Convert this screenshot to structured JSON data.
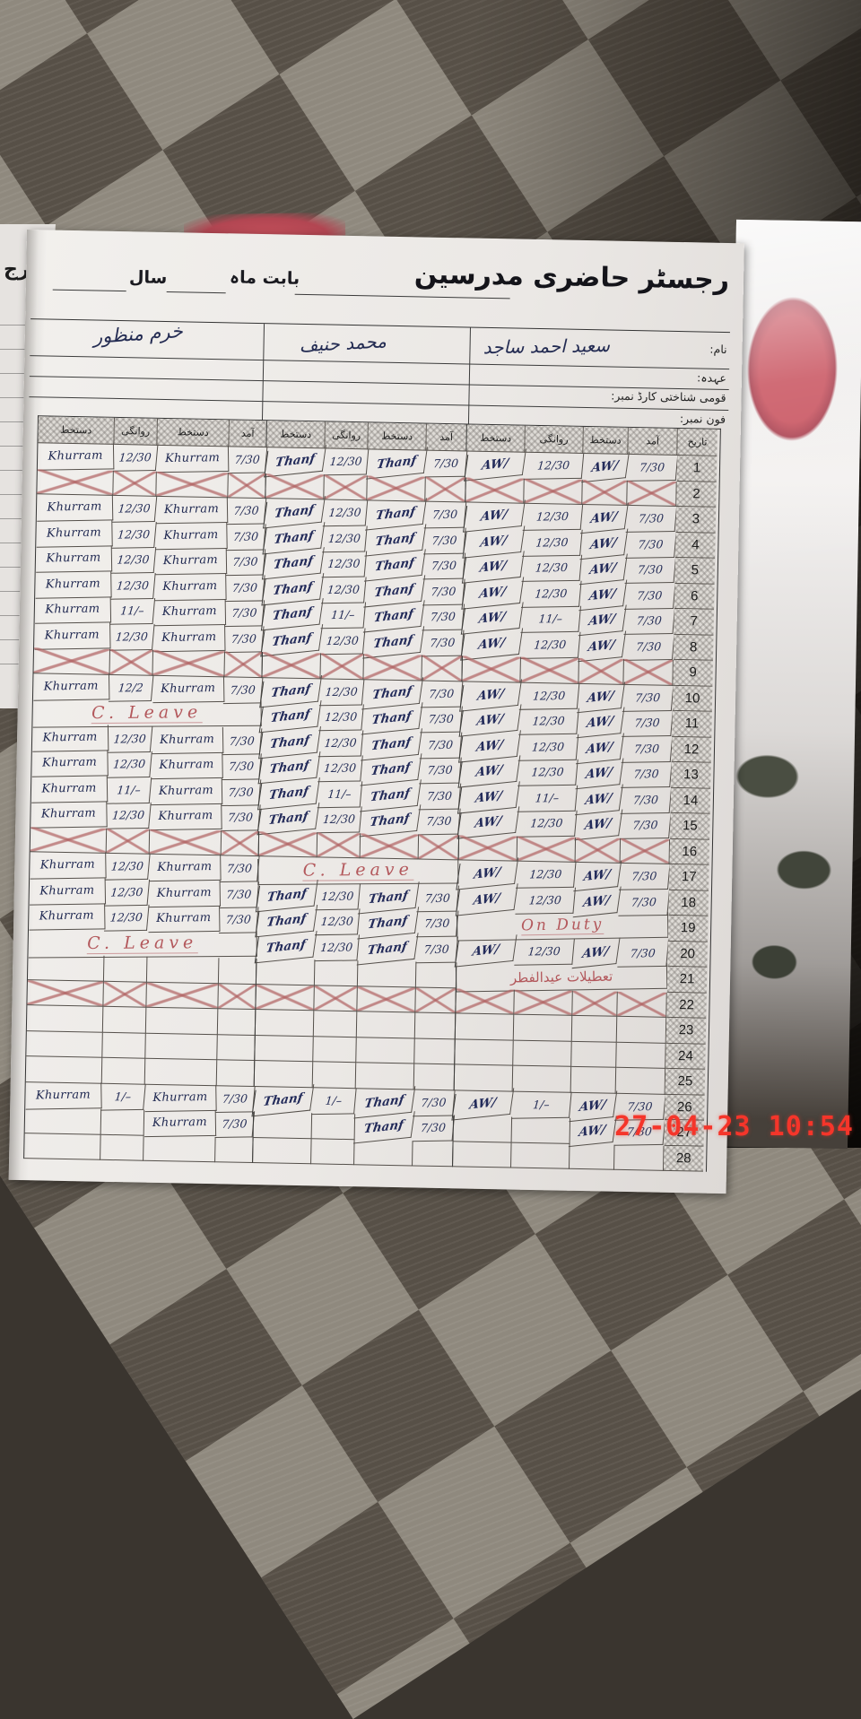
{
  "meta": {
    "timestamp": "27-04-23 10:54"
  },
  "previous_page": {
    "fragment": "رج"
  },
  "page_header": {
    "title": "رجسٹر حاضری مدرسین",
    "month_label": "بابت ماہ",
    "year_label": "سال"
  },
  "info": {
    "labels": {
      "name": "نام:",
      "designation": "عہدہ:",
      "id_card": "قومی شناختی کارڈ نمبر:",
      "phone": "فون نمبر:"
    },
    "name_value": "سعید احمد ساجد",
    "teacher1_signature": "خرم منظور",
    "teacher2_signature": "محمد حنیف"
  },
  "colors": {
    "ink_blue": "#232b5a",
    "red_note": "#b3585c",
    "timestamp_red": "#f5352a"
  },
  "table": {
    "column_headers": {
      "date": "تاریخ",
      "arrival": "آمد",
      "signature": "دستخط",
      "departure": "روانگی"
    },
    "rows": [
      {
        "date": "1",
        "cells": [
          "Khurram",
          "12/30",
          "Khurram",
          "7/30",
          "Thanf",
          "12/30",
          "Thanf",
          "7/30",
          "AW/",
          "12/30",
          "AW/",
          "7/30"
        ]
      },
      {
        "date": "2",
        "crossed": true
      },
      {
        "date": "3",
        "cells": [
          "Khurram",
          "12/30",
          "Khurram",
          "7/30",
          "Thanf",
          "12/30",
          "Thanf",
          "7/30",
          "AW/",
          "12/30",
          "AW/",
          "7/30"
        ]
      },
      {
        "date": "4",
        "cells": [
          "Khurram",
          "12/30",
          "Khurram",
          "7/30",
          "Thanf",
          "12/30",
          "Thanf",
          "7/30",
          "AW/",
          "12/30",
          "AW/",
          "7/30"
        ]
      },
      {
        "date": "5",
        "cells": [
          "Khurram",
          "12/30",
          "Khurram",
          "7/30",
          "Thanf",
          "12/30",
          "Thanf",
          "7/30",
          "AW/",
          "12/30",
          "AW/",
          "7/30"
        ]
      },
      {
        "date": "6",
        "cells": [
          "Khurram",
          "12/30",
          "Khurram",
          "7/30",
          "Thanf",
          "12/30",
          "Thanf",
          "7/30",
          "AW/",
          "12/30",
          "AW/",
          "7/30"
        ]
      },
      {
        "date": "7",
        "cells": [
          "Khurram",
          "11/–",
          "Khurram",
          "7/30",
          "Thanf",
          "11/–",
          "Thanf",
          "7/30",
          "AW/",
          "11/–",
          "AW/",
          "7/30"
        ]
      },
      {
        "date": "8",
        "cells": [
          "Khurram",
          "12/30",
          "Khurram",
          "7/30",
          "Thanf",
          "12/30",
          "Thanf",
          "7/30",
          "AW/",
          "12/30",
          "AW/",
          "7/30"
        ]
      },
      {
        "date": "9",
        "crossed": true
      },
      {
        "date": "10",
        "cells": [
          "Khurram",
          "12/2",
          "Khurram",
          "7/30",
          "Thanf",
          "12/30",
          "Thanf",
          "7/30",
          "AW/",
          "12/30",
          "AW/",
          "7/30"
        ]
      },
      {
        "date": "11",
        "spans": [
          {
            "col": 0,
            "span": 4,
            "text": "C. Leave",
            "style": "leave"
          }
        ],
        "cells": [
          "",
          "",
          "",
          "",
          "Thanf",
          "12/30",
          "Thanf",
          "7/30",
          "AW/",
          "12/30",
          "AW/",
          "7/30"
        ]
      },
      {
        "date": "12",
        "cells": [
          "Khurram",
          "12/30",
          "Khurram",
          "7/30",
          "Thanf",
          "12/30",
          "Thanf",
          "7/30",
          "AW/",
          "12/30",
          "AW/",
          "7/30"
        ]
      },
      {
        "date": "13",
        "cells": [
          "Khurram",
          "12/30",
          "Khurram",
          "7/30",
          "Thanf",
          "12/30",
          "Thanf",
          "7/30",
          "AW/",
          "12/30",
          "AW/",
          "7/30"
        ]
      },
      {
        "date": "14",
        "cells": [
          "Khurram",
          "11/–",
          "Khurram",
          "7/30",
          "Thanf",
          "11/–",
          "Thanf",
          "7/30",
          "AW/",
          "11/–",
          "AW/",
          "7/30"
        ]
      },
      {
        "date": "15",
        "cells": [
          "Khurram",
          "12/30",
          "Khurram",
          "7/30",
          "Thanf",
          "12/30",
          "Thanf",
          "7/30",
          "AW/",
          "12/30",
          "AW/",
          "7/30"
        ]
      },
      {
        "date": "16",
        "crossed": true
      },
      {
        "date": "17",
        "spans": [
          {
            "col": 4,
            "span": 4,
            "text": "C. Leave",
            "style": "leave"
          }
        ],
        "cells": [
          "Khurram",
          "12/30",
          "Khurram",
          "7/30",
          "",
          "",
          "",
          "",
          "AW/",
          "12/30",
          "AW/",
          "7/30"
        ]
      },
      {
        "date": "18",
        "cells": [
          "Khurram",
          "12/30",
          "Khurram",
          "7/30",
          "Thanf",
          "12/30",
          "Thanf",
          "7/30",
          "AW/",
          "12/30",
          "AW/",
          "7/30"
        ]
      },
      {
        "date": "19",
        "spans": [
          {
            "col": 8,
            "span": 4,
            "text": "On Duty",
            "style": "duty"
          }
        ],
        "cells": [
          "Khurram",
          "12/30",
          "Khurram",
          "7/30",
          "Thanf",
          "12/30",
          "Thanf",
          "7/30",
          "",
          "",
          "",
          ""
        ]
      },
      {
        "date": "20",
        "spans": [
          {
            "col": 0,
            "span": 4,
            "text": "C. Leave",
            "style": "leave"
          }
        ],
        "cells": [
          "",
          "",
          "",
          "",
          "Thanf",
          "12/30",
          "Thanf",
          "7/30",
          "AW/",
          "12/30",
          "AW/",
          "7/30"
        ]
      },
      {
        "date": "21",
        "spans": [
          {
            "col": 8,
            "span": 4,
            "text": "تعطیلات عیدالفطر",
            "style": "urdu-red"
          }
        ],
        "cells": [
          "",
          "",
          "",
          "",
          "",
          "",
          "",
          "",
          "",
          "",
          "",
          ""
        ]
      },
      {
        "date": "22",
        "crossed": true
      },
      {
        "date": "23"
      },
      {
        "date": "24"
      },
      {
        "date": "25"
      },
      {
        "date": "26",
        "cells": [
          "Khurram",
          "1/–",
          "Khurram",
          "7/30",
          "Thanf",
          "1/–",
          "Thanf",
          "7/30",
          "AW/",
          "1/–",
          "AW/",
          "7/30"
        ]
      },
      {
        "date": "27",
        "cells": [
          "",
          "",
          "Khurram",
          "7/30",
          "",
          "",
          "Thanf",
          "7/30",
          "",
          "",
          "AW/",
          "7/30"
        ]
      },
      {
        "date": "28"
      }
    ]
  }
}
